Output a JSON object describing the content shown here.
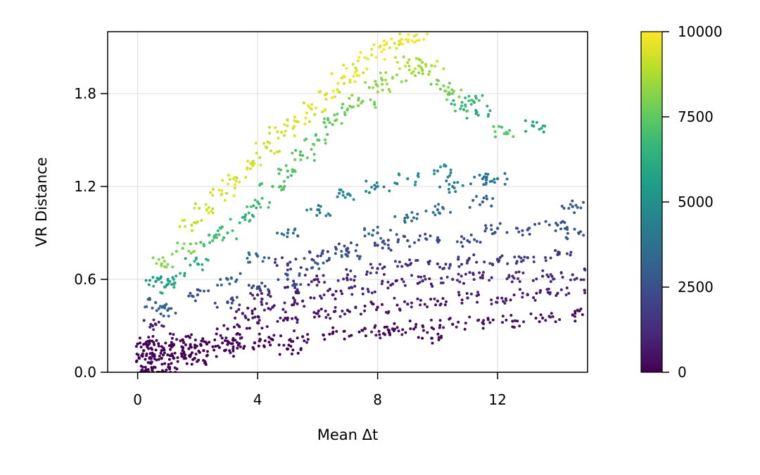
{
  "chart_data": {
    "type": "scatter",
    "title": "",
    "xlabel": "Mean Δt",
    "ylabel": "VR Distance",
    "xlim": [
      -1.0,
      15.0
    ],
    "ylim": [
      0.0,
      2.2
    ],
    "xticks": [
      0,
      4,
      8,
      12
    ],
    "xtick_labels": [
      "0",
      "4",
      "8",
      "12"
    ],
    "yticks": [
      0.0,
      0.6,
      1.2,
      1.8
    ],
    "ytick_labels": [
      "0.0",
      "0.6",
      "1.2",
      "1.8"
    ],
    "grid": true,
    "legend": "none",
    "colormap": "viridis",
    "colorbar": {
      "min": 0,
      "max": 10000,
      "ticks": [
        0,
        2500,
        5000,
        7500,
        10000
      ],
      "tick_labels": [
        "0",
        "2500",
        "5000",
        "7500",
        "10000"
      ],
      "colors": [
        "#440154",
        "#482878",
        "#3e4989",
        "#31688e",
        "#26828e",
        "#1f9e89",
        "#35b779",
        "#6ece58",
        "#b5de2b",
        "#fde725"
      ]
    },
    "points_description": "dense scatter; approximate representative points [x, y, color_value]",
    "points": [
      [
        0.1,
        0.0,
        0
      ],
      [
        0.3,
        0.0,
        0
      ],
      [
        0.5,
        0.0,
        0
      ],
      [
        0.7,
        0.0,
        0
      ],
      [
        0.9,
        0.0,
        0
      ],
      [
        0.05,
        0.09,
        0
      ],
      [
        0.4,
        0.09,
        0
      ],
      [
        0.8,
        0.09,
        0
      ],
      [
        1.2,
        0.09,
        0
      ],
      [
        1.6,
        0.09,
        0
      ],
      [
        1.9,
        0.09,
        0
      ],
      [
        0.2,
        0.14,
        0
      ],
      [
        0.8,
        0.14,
        0
      ],
      [
        1.5,
        0.14,
        0
      ],
      [
        2.2,
        0.14,
        0
      ],
      [
        2.9,
        0.14,
        0
      ],
      [
        0.3,
        0.18,
        0
      ],
      [
        1.2,
        0.18,
        0
      ],
      [
        2.1,
        0.18,
        0
      ],
      [
        3.0,
        0.18,
        0
      ],
      [
        3.9,
        0.19,
        100
      ],
      [
        0.4,
        0.2,
        0
      ],
      [
        1.5,
        0.21,
        0
      ],
      [
        3.0,
        0.2,
        100
      ],
      [
        4.5,
        0.21,
        100
      ],
      [
        5.0,
        0.15,
        0
      ],
      [
        5.5,
        0.23,
        200
      ],
      [
        6.5,
        0.25,
        200
      ],
      [
        7.5,
        0.27,
        300
      ],
      [
        8.5,
        0.28,
        300
      ],
      [
        9.5,
        0.3,
        300
      ],
      [
        10.5,
        0.31,
        400
      ],
      [
        11.5,
        0.32,
        400
      ],
      [
        12.5,
        0.33,
        500
      ],
      [
        13.5,
        0.35,
        500
      ],
      [
        14.5,
        0.37,
        500
      ],
      [
        3.0,
        0.28,
        300
      ],
      [
        4.0,
        0.32,
        400
      ],
      [
        5.0,
        0.35,
        400
      ],
      [
        6.0,
        0.38,
        500
      ],
      [
        7.0,
        0.4,
        600
      ],
      [
        8.0,
        0.42,
        600
      ],
      [
        9.0,
        0.44,
        700
      ],
      [
        10.0,
        0.46,
        700
      ],
      [
        11.0,
        0.48,
        800
      ],
      [
        12.0,
        0.48,
        800
      ],
      [
        13.0,
        0.5,
        800
      ],
      [
        14.0,
        0.51,
        900
      ],
      [
        14.9,
        0.53,
        900
      ],
      [
        3.5,
        0.38,
        500
      ],
      [
        4.5,
        0.42,
        600
      ],
      [
        5.5,
        0.46,
        700
      ],
      [
        6.5,
        0.5,
        800
      ],
      [
        7.5,
        0.54,
        900
      ],
      [
        8.5,
        0.57,
        1000
      ],
      [
        9.5,
        0.59,
        1000
      ],
      [
        10.5,
        0.6,
        1100
      ],
      [
        11.5,
        0.61,
        1100
      ],
      [
        12.5,
        0.62,
        1200
      ],
      [
        13.5,
        0.62,
        1200
      ],
      [
        14.5,
        0.63,
        1300
      ],
      [
        4.0,
        0.5,
        800
      ],
      [
        5.0,
        0.55,
        900
      ],
      [
        6.0,
        0.6,
        1000
      ],
      [
        7.0,
        0.63,
        1200
      ],
      [
        8.0,
        0.67,
        1300
      ],
      [
        9.0,
        0.69,
        1400
      ],
      [
        10.0,
        0.7,
        1400
      ],
      [
        11.0,
        0.72,
        1500
      ],
      [
        12.0,
        0.73,
        1500
      ],
      [
        13.0,
        0.74,
        1600
      ],
      [
        14.0,
        0.76,
        1600
      ],
      [
        5.0,
        0.7,
        1600
      ],
      [
        6.0,
        0.75,
        1800
      ],
      [
        7.0,
        0.8,
        2000
      ],
      [
        8.0,
        0.82,
        2100
      ],
      [
        9.0,
        0.85,
        2200
      ],
      [
        10.0,
        0.86,
        2300
      ],
      [
        11.0,
        0.85,
        2300
      ],
      [
        12.0,
        0.93,
        2400
      ],
      [
        13.0,
        0.92,
        2400
      ],
      [
        14.0,
        0.95,
        2500
      ],
      [
        14.5,
        1.07,
        2800
      ],
      [
        14.7,
        0.9,
        2600
      ],
      [
        0.5,
        0.3,
        1000
      ],
      [
        0.6,
        0.45,
        3000
      ],
      [
        0.7,
        0.6,
        5500
      ],
      [
        0.8,
        0.7,
        8000
      ],
      [
        0.9,
        0.55,
        6000
      ],
      [
        1.0,
        0.4,
        3000
      ],
      [
        1.2,
        0.6,
        6000
      ],
      [
        1.5,
        0.8,
        8000
      ],
      [
        1.8,
        0.95,
        9000
      ],
      [
        2.0,
        0.7,
        6000
      ],
      [
        2.3,
        1.05,
        9200
      ],
      [
        2.5,
        0.85,
        7000
      ],
      [
        2.8,
        1.15,
        9300
      ],
      [
        3.0,
        0.9,
        6800
      ],
      [
        3.2,
        1.25,
        9400
      ],
      [
        3.5,
        1.0,
        6500
      ],
      [
        3.8,
        1.35,
        9300
      ],
      [
        4.0,
        1.1,
        6800
      ],
      [
        4.3,
        1.45,
        9200
      ],
      [
        4.5,
        1.2,
        7000
      ],
      [
        4.8,
        1.55,
        9300
      ],
      [
        5.0,
        1.3,
        7200
      ],
      [
        5.3,
        1.62,
        9400
      ],
      [
        5.5,
        1.4,
        7300
      ],
      [
        5.8,
        1.7,
        9400
      ],
      [
        6.0,
        1.5,
        7500
      ],
      [
        6.3,
        1.8,
        9500
      ],
      [
        6.5,
        1.6,
        7600
      ],
      [
        6.8,
        1.9,
        9500
      ],
      [
        7.0,
        1.7,
        7800
      ],
      [
        7.3,
        1.95,
        9500
      ],
      [
        7.5,
        1.75,
        7900
      ],
      [
        7.8,
        2.05,
        9600
      ],
      [
        8.0,
        1.85,
        8200
      ],
      [
        8.3,
        2.12,
        9700
      ],
      [
        8.5,
        1.9,
        8400
      ],
      [
        8.8,
        2.15,
        9700
      ],
      [
        9.0,
        2.0,
        8800
      ],
      [
        9.3,
        2.18,
        9800
      ],
      [
        9.5,
        1.95,
        8600
      ],
      [
        9.8,
        1.98,
        8700
      ],
      [
        10.2,
        1.85,
        8000
      ],
      [
        10.5,
        1.8,
        7800
      ],
      [
        10.8,
        1.72,
        7000
      ],
      [
        11.2,
        1.75,
        6800
      ],
      [
        11.3,
        1.68,
        6000
      ],
      [
        12.3,
        1.55,
        7200
      ],
      [
        13.2,
        1.59,
        5800
      ],
      [
        3.0,
        0.6,
        3000
      ],
      [
        4.0,
        0.75,
        3500
      ],
      [
        5.0,
        0.9,
        3800
      ],
      [
        6.0,
        1.05,
        4200
      ],
      [
        7.0,
        1.15,
        4500
      ],
      [
        8.0,
        1.2,
        4600
      ],
      [
        9.0,
        1.25,
        4800
      ],
      [
        10.0,
        1.3,
        5000
      ],
      [
        10.5,
        1.2,
        4200
      ],
      [
        11.5,
        1.25,
        4000
      ],
      [
        12.0,
        1.25,
        3800
      ],
      [
        11.5,
        1.1,
        3000
      ],
      [
        2.0,
        0.5,
        2500
      ],
      [
        3.0,
        0.45,
        1800
      ],
      [
        4.0,
        0.55,
        2200
      ],
      [
        5.0,
        0.6,
        2500
      ],
      [
        6.0,
        0.7,
        2700
      ],
      [
        7.0,
        0.75,
        2800
      ],
      [
        8.0,
        0.9,
        3200
      ],
      [
        9.0,
        1.0,
        3500
      ],
      [
        10.0,
        1.05,
        3600
      ],
      [
        8.2,
        0.25,
        300
      ],
      [
        9.8,
        0.22,
        200
      ]
    ]
  }
}
